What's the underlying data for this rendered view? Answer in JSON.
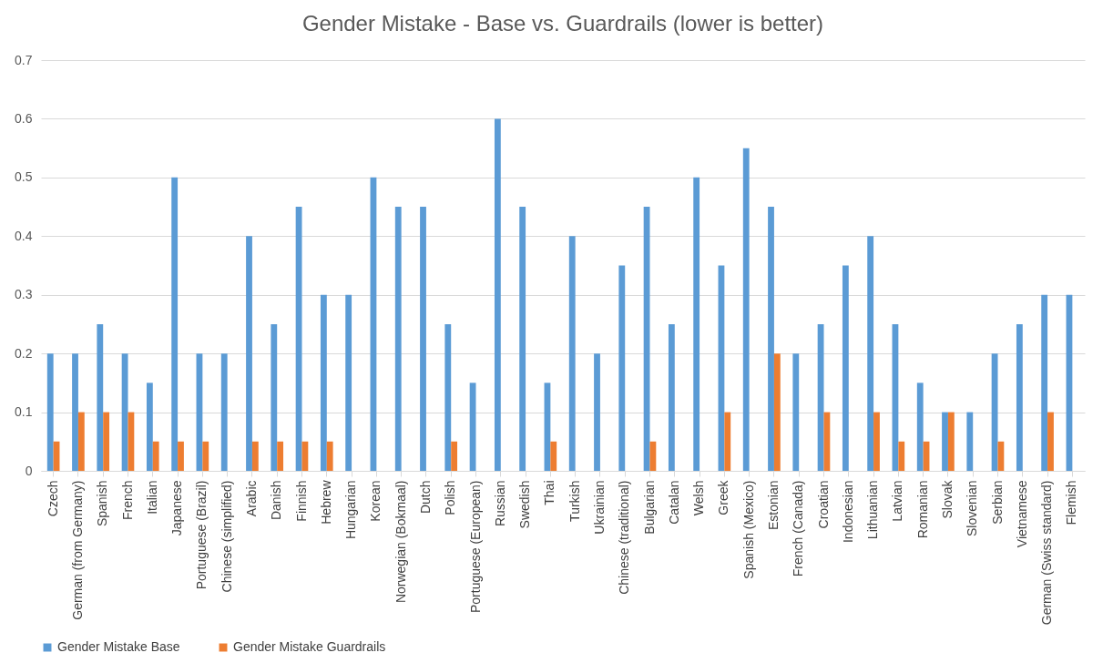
{
  "chart_data": {
    "type": "bar",
    "title": "Gender Mistake - Base vs. Guardrails (lower is better)",
    "categories": [
      "Czech",
      "German (from Germany)",
      "Spanish",
      "French",
      "Italian",
      "Japanese",
      "Portuguese (Brazil)",
      "Chinese (simplified)",
      "Arabic",
      "Danish",
      "Finnish",
      "Hebrew",
      "Hungarian",
      "Korean",
      "Norwegian (Bokmaal)",
      "Dutch",
      "Polish",
      "Portuguese (European)",
      "Russian",
      "Swedish",
      "Thai",
      "Turkish",
      "Ukrainian",
      "Chinese (traditional)",
      "Bulgarian",
      "Catalan",
      "Welsh",
      "Greek",
      "Spanish (Mexico)",
      "Estonian",
      "French (Canada)",
      "Croatian",
      "Indonesian",
      "Lithuanian",
      "Latvian",
      "Romanian",
      "Slovak",
      "Slovenian",
      "Serbian",
      "Vietnamese",
      "German (Swiss standard)",
      "Flemish"
    ],
    "series": [
      {
        "name": "Gender Mistake Base",
        "color": "#5b9bd5",
        "values": [
          0.2,
          0.2,
          0.25,
          0.2,
          0.15,
          0.5,
          0.2,
          0.2,
          0.4,
          0.25,
          0.45,
          0.3,
          0.3,
          0.5,
          0.45,
          0.45,
          0.25,
          0.15,
          0.6,
          0.45,
          0.15,
          0.4,
          0.2,
          0.35,
          0.45,
          0.25,
          0.5,
          0.35,
          0.55,
          0.45,
          0.2,
          0.25,
          0.35,
          0.4,
          0.25,
          0.15,
          0.1,
          0.1,
          0.2,
          0.25,
          0.3,
          0.3
        ]
      },
      {
        "name": "Gender Mistake Guardrails",
        "color": "#ed7d31",
        "values": [
          0.05,
          0.1,
          0.1,
          0.1,
          0.05,
          0.05,
          0.05,
          0,
          0.05,
          0.05,
          0.05,
          0.05,
          0,
          0,
          0,
          0,
          0.05,
          0,
          0,
          0,
          0.05,
          0,
          0,
          0,
          0.05,
          0,
          0,
          0.1,
          0,
          0.2,
          0,
          0.1,
          0,
          0.1,
          0.05,
          0.05,
          0.1,
          0,
          0.05,
          0,
          0.1,
          0
        ]
      }
    ],
    "ylim": [
      0,
      0.7
    ],
    "yticks": [
      0,
      0.1,
      0.2,
      0.3,
      0.4,
      0.5,
      0.6,
      0.7
    ],
    "grid": "y",
    "legend": "bottom"
  }
}
